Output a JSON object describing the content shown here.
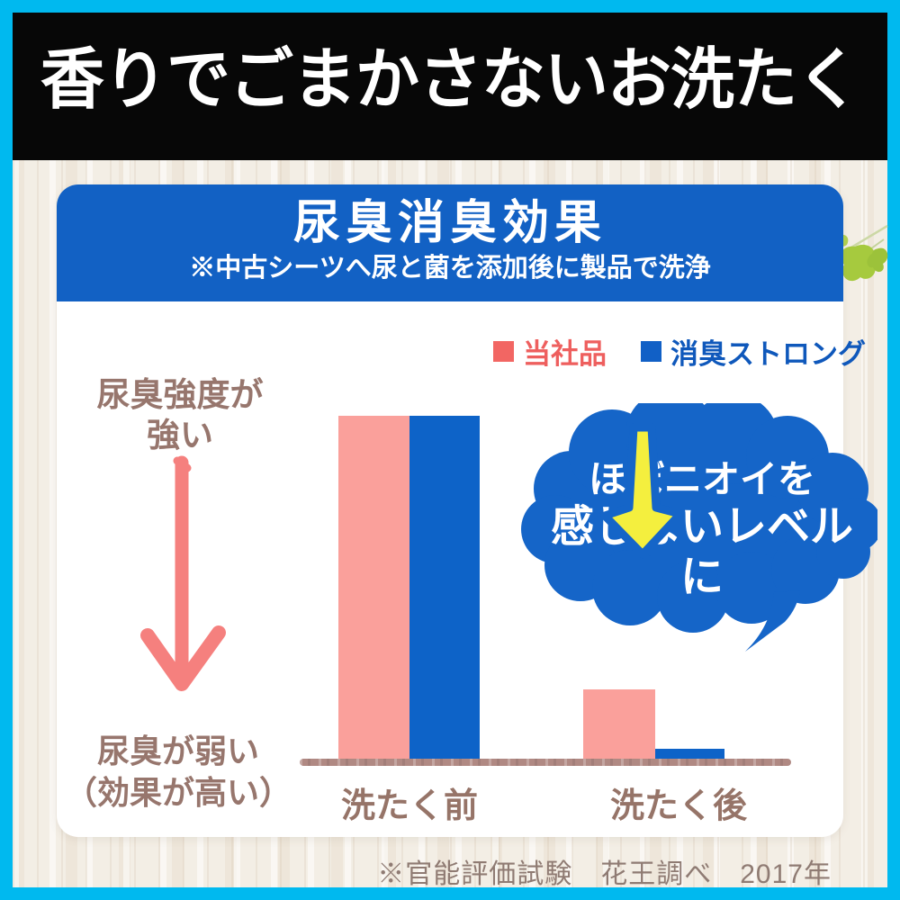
{
  "banner": {
    "title": "香りでごまかさないお洗たく"
  },
  "panel": {
    "title": "尿臭消臭効果",
    "subtitle": "※中古シーツへ尿と菌を添加後に製品で洗浄"
  },
  "legend": {
    "items": [
      {
        "label": "当社品",
        "color": "#f26663"
      },
      {
        "label": "消臭ストロング",
        "color": "#1160c6"
      }
    ]
  },
  "axis_labels": {
    "top_line1": "尿臭強度が",
    "top_line2": "強い",
    "bottom_line1": "尿臭が弱い",
    "bottom_line2": "（効果が高い）"
  },
  "callout": {
    "line1": "ほぼニオイを",
    "line2": "感じないレベルに"
  },
  "footnote": "※官能評価試験　花王調べ　2017年",
  "chart_data": {
    "type": "bar",
    "title": "尿臭消臭効果",
    "subtitle": "※中古シーツへ尿と菌を添加後に製品で洗浄",
    "categories": [
      "洗たく前",
      "洗たく後"
    ],
    "series": [
      {
        "name": "当社品",
        "color": "#faa09b",
        "values": [
          100,
          21
        ]
      },
      {
        "name": "消臭ストロング",
        "color": "#0d63c8",
        "values": [
          100,
          4
        ]
      }
    ],
    "ylabel": "尿臭強度（上＝強い、下＝弱い・効果が高い）",
    "ylim": [
      0,
      100
    ],
    "y_axis_numeric_ticks": false,
    "grid": false,
    "legend_position": "top-right",
    "annotation": "ほぼニオイを感じないレベルに"
  },
  "colors": {
    "frame_cyan": "#00b9ef",
    "banner_black": "#070707",
    "header_blue": "#1261c4",
    "cloud_blue": "#1565c8",
    "bar_pink": "#faa09b",
    "bar_blue": "#0d63c8",
    "crayon_pink": "#f5807e",
    "arrow_yellow": "#f4ef3e",
    "brown_text": "#97766d",
    "baseline_brown": "#b08983",
    "leaf_green": "#a6ca3e",
    "wood_bg": "#f3eee5"
  }
}
